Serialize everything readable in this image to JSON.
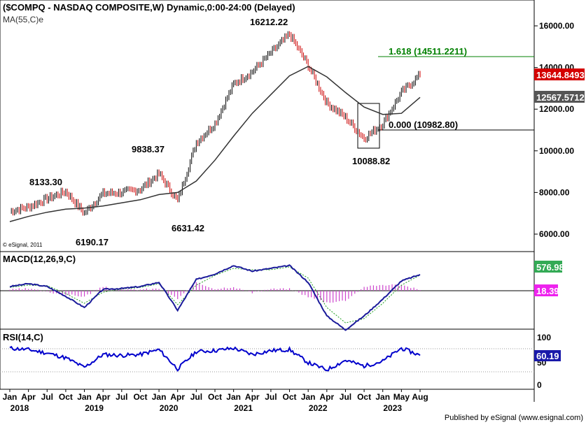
{
  "header": {
    "title": "($COMPQ - NASDAQ COMPOSITE,W) Dynamic,0:00-24:00 (Delayed)",
    "ma_label": "MA(55,C)e"
  },
  "footer": {
    "copyright": "© eSignal, 2011",
    "published": "Published by eSignal (www.esignal.com)"
  },
  "colors": {
    "price_up": "#000000",
    "price_down": "#cc0000",
    "ma_line": "#333333",
    "fib_line": "#008000",
    "macd_line": "#1a1a9a",
    "macd_signal": "#1e9e1e",
    "macd_hist": "#cc44cc",
    "rsi_line": "#0000cc",
    "badge_close": "#d40000",
    "badge_ma": "#555555",
    "badge_macd": "#33aa55",
    "badge_hist": "#ee22ee",
    "badge_rsi": "#1a1aaa"
  },
  "chart_data": [
    {
      "type": "candlestick",
      "title": "($COMPQ - NASDAQ COMPOSITE,W) Dynamic,0:00-24:00 (Delayed)",
      "ylim": [
        5000,
        17000
      ],
      "yticks": [
        "16000.00",
        "14000.00",
        "12000.00",
        "10000.00",
        "8000.00",
        "6000.00"
      ],
      "x": [
        "Jan 2018",
        "Apr",
        "Jul",
        "Oct",
        "Jan 2019",
        "Apr",
        "Jul",
        "Oct",
        "Jan 2020",
        "Apr",
        "Jul",
        "Oct",
        "Jan 2021",
        "Apr",
        "Jul",
        "Oct",
        "Jan 2022",
        "Apr",
        "Jul",
        "Oct",
        "Jan 2023",
        "May",
        "Aug"
      ],
      "close": [
        7100,
        7300,
        7700,
        8050,
        7000,
        7950,
        8000,
        8150,
        8900,
        7600,
        10400,
        11300,
        13200,
        13800,
        14700,
        15600,
        14100,
        12300,
        11600,
        10600,
        11300,
        12800,
        13644.8493
      ],
      "series": [
        {
          "name": "MA(55,C)e",
          "values": [
            6600,
            6850,
            7050,
            7200,
            7250,
            7350,
            7500,
            7650,
            7900,
            8000,
            8550,
            9550,
            10700,
            11800,
            12700,
            13600,
            14050,
            13550,
            12800,
            12100,
            11750,
            11800,
            12567.5712
          ]
        }
      ],
      "labels": {
        "price_points": [
          {
            "text": "8133.30",
            "x": "Aug 2018",
            "y": 8133.3
          },
          {
            "text": "6190.17",
            "x": "Dec 2018",
            "y": 6190.17
          },
          {
            "text": "9838.37",
            "x": "Feb 2020",
            "y": 9838.37
          },
          {
            "text": "6631.42",
            "x": "Mar 2020",
            "y": 6631.42
          },
          {
            "text": "16212.22",
            "x": "Nov 2021",
            "y": 16212.22
          },
          {
            "text": "10088.82",
            "x": "Oct 2022",
            "y": 10088.82
          }
        ],
        "fib_high": "1.618 (14511.2211)",
        "fib_low": "0.000 (10982.80)",
        "close_badge": "13644.8493",
        "ma_badge": "12567.5712"
      }
    },
    {
      "type": "line",
      "title": "MACD(12,26,9,C)",
      "series": [
        {
          "name": "MACD",
          "values": [
            150,
            250,
            150,
            -200,
            -600,
            50,
            80,
            150,
            300,
            -700,
            400,
            600,
            900,
            700,
            800,
            900,
            300,
            -900,
            -1400,
            -900,
            -300,
            350,
            576.98
          ]
        },
        {
          "name": "Signal",
          "values": [
            120,
            200,
            180,
            -100,
            -450,
            -50,
            60,
            120,
            250,
            -500,
            200,
            550,
            800,
            750,
            750,
            850,
            450,
            -600,
            -1150,
            -1000,
            -450,
            200,
            558.59
          ]
        }
      ],
      "histogram_last": 18.39,
      "badges": {
        "macd": "576.98",
        "hist": "18.39"
      }
    },
    {
      "type": "line",
      "title": "RSI(14,C)",
      "ylim": [
        0,
        100
      ],
      "yticks": [
        "100",
        "50",
        "0"
      ],
      "series": [
        {
          "name": "RSI(14,C)",
          "values": [
            75,
            72,
            65,
            55,
            35,
            62,
            60,
            62,
            72,
            32,
            68,
            70,
            75,
            62,
            70,
            72,
            45,
            30,
            50,
            38,
            48,
            75,
            60.19
          ]
        }
      ],
      "badge": "60.19"
    }
  ],
  "axis": {
    "months": [
      "Jan",
      "Apr",
      "Jul",
      "Oct",
      "Jan",
      "Apr",
      "Jul",
      "Oct",
      "Jan",
      "Apr",
      "Jul",
      "Oct",
      "Jan",
      "Apr",
      "Jul",
      "Oct",
      "Jan",
      "Apr",
      "Jul",
      "Oct",
      "Jan",
      "May",
      "Aug"
    ],
    "years": [
      "2018",
      "2019",
      "2020",
      "2021",
      "2022",
      "2023"
    ]
  }
}
